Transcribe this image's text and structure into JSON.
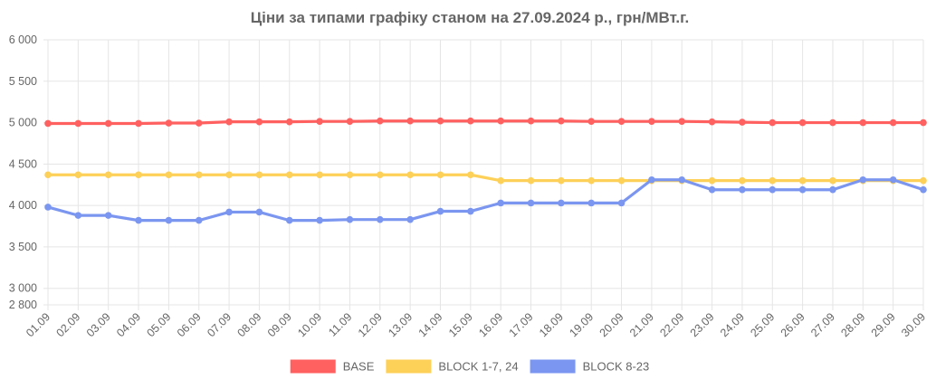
{
  "chart_data": {
    "type": "line",
    "title": "Ціни за типами графіку станом на 27.09.2024 р., грн/МВт.г.",
    "xlabel": "",
    "ylabel": "",
    "categories": [
      "01.09",
      "02.09",
      "03.09",
      "04.09",
      "05.09",
      "06.09",
      "07.09",
      "08.09",
      "09.09",
      "10.09",
      "11.09",
      "12.09",
      "13.09",
      "14.09",
      "15.09",
      "16.09",
      "17.09",
      "18.09",
      "19.09",
      "20.09",
      "21.09",
      "22.09",
      "23.09",
      "24.09",
      "25.09",
      "26.09",
      "27.09",
      "28.09",
      "29.09",
      "30.09"
    ],
    "ylim": [
      2800,
      6000
    ],
    "yticks": [
      2800,
      3000,
      3500,
      4000,
      4500,
      5000,
      5500,
      6000
    ],
    "ytick_labels": [
      "2 800",
      "3 000",
      "3 500",
      "4 000",
      "4 500",
      "5 000",
      "5 500",
      "6 000"
    ],
    "grid": true,
    "legend_position": "bottom",
    "series": [
      {
        "name": "BASE",
        "color": "#ff6060",
        "values": [
          4990,
          4990,
          4990,
          4990,
          4995,
          4995,
          5010,
          5010,
          5010,
          5015,
          5015,
          5020,
          5020,
          5020,
          5020,
          5020,
          5020,
          5020,
          5015,
          5015,
          5015,
          5015,
          5010,
          5005,
          5000,
          5000,
          5000,
          5000,
          5000,
          5000
        ]
      },
      {
        "name": "BLOCK 1-7, 24",
        "color": "#fdd058",
        "values": [
          4370,
          4370,
          4370,
          4370,
          4370,
          4370,
          4370,
          4370,
          4370,
          4370,
          4370,
          4370,
          4370,
          4370,
          4370,
          4300,
          4300,
          4300,
          4300,
          4300,
          4300,
          4300,
          4300,
          4300,
          4300,
          4300,
          4300,
          4300,
          4300,
          4300
        ]
      },
      {
        "name": "BLOCK 8-23",
        "color": "#7b96f0",
        "values": [
          3980,
          3880,
          3880,
          3820,
          3820,
          3820,
          3920,
          3920,
          3820,
          3820,
          3830,
          3830,
          3830,
          3930,
          3930,
          4030,
          4030,
          4030,
          4030,
          4030,
          4310,
          4310,
          4190,
          4190,
          4190,
          4190,
          4190,
          4310,
          4310,
          4190
        ]
      }
    ]
  }
}
